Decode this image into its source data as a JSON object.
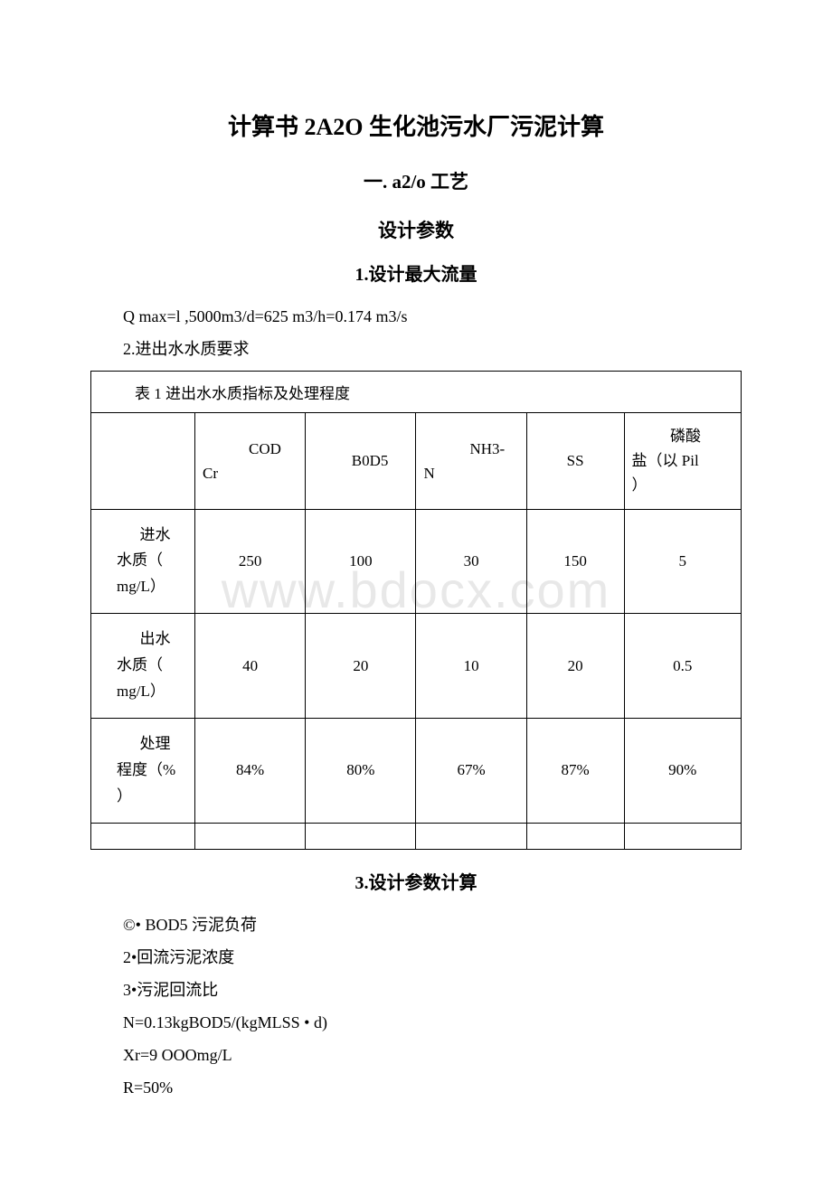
{
  "watermark": "www.bdocx.com",
  "title": "计算书 2A2O 生化池污水厂污泥计算",
  "subtitle1": "一. a2/o 工艺",
  "subtitle2": "设计参数",
  "section1_title": "1.设计最大流量",
  "qmax_line": "Q max=l ,5000m3/d=625 m3/h=0.174 m3/s",
  "section2_prefix": "2.进出水水质要求",
  "table": {
    "caption": "表 1 进出水水质指标及处理程度",
    "headers": [
      "",
      "CODCr",
      "B0D5",
      "NH3-N",
      "SS",
      "磷酸盐（以 Pil）"
    ],
    "header_cells": {
      "c1_top": "COD",
      "c1_bot": "Cr",
      "c2": "B0D5",
      "c3_top": "NH3-",
      "c3_bot": "N",
      "c4": "SS",
      "c5_top": "磷酸",
      "c5_mid": "盐（以 Pil",
      "c5_bot": "）"
    },
    "rows": [
      {
        "label_l1": "进水",
        "label_l2": "水质（",
        "label_l3": "mg/L）",
        "values": [
          "250",
          "100",
          "30",
          "150",
          "5"
        ]
      },
      {
        "label_l1": "出水",
        "label_l2": "水质（",
        "label_l3": "mg/L）",
        "values": [
          "40",
          "20",
          "10",
          "20",
          "0.5"
        ]
      },
      {
        "label_l1": "处理",
        "label_l2": "程度（%",
        "label_l3": "）",
        "values": [
          "84%",
          "80%",
          "67%",
          "87%",
          "90%"
        ]
      }
    ]
  },
  "section3_title": "3.设计参数计算",
  "params": [
    "©• BOD5 污泥负荷",
    "2•回流污泥浓度",
    "3•污泥回流比",
    "N=0.13kgBOD5/(kgMLSS • d)",
    "Xr=9 OOOmg/L",
    "R=50%"
  ],
  "colors": {
    "text": "#000000",
    "background": "#ffffff",
    "border": "#000000",
    "watermark": "#e8e8e8"
  },
  "fonts": {
    "title_size": 26,
    "subtitle_size": 21,
    "body_size": 18,
    "table_size": 17
  }
}
